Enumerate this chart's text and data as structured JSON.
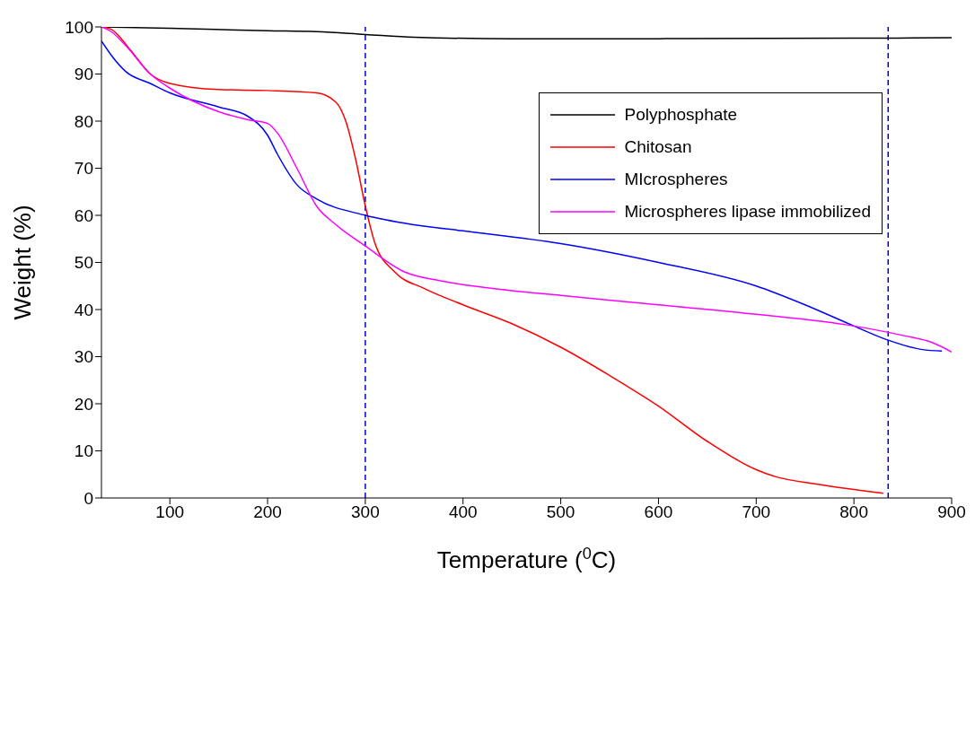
{
  "chart_data": {
    "type": "line",
    "xlabel": "Temperature ($^{0}$C)",
    "ylabel": "Weight (%)",
    "xlim": [
      30,
      900
    ],
    "xticks": [
      100,
      200,
      300,
      400,
      500,
      600,
      700,
      800,
      900
    ],
    "ylim": [
      0,
      100
    ],
    "yticks": [
      0,
      10,
      20,
      30,
      40,
      50,
      60,
      70,
      80,
      90,
      100
    ],
    "legend": "top right",
    "series": [
      {
        "name": "Polyphosphate",
        "color": "#000000",
        "x": [
          30,
          100,
          200,
          250,
          300,
          350,
          450,
          600,
          800,
          900
        ],
        "values": [
          100,
          99.7,
          99.2,
          99,
          98.4,
          97.8,
          97.5,
          97.5,
          97.6,
          97.7
        ]
      },
      {
        "name": "Chitosan",
        "color": "#ff0000",
        "x": [
          30,
          40,
          60,
          80,
          100,
          150,
          200,
          250,
          270,
          280,
          290,
          300,
          310,
          330,
          360,
          400,
          450,
          500,
          550,
          600,
          650,
          700,
          720,
          760,
          830
        ],
        "values": [
          100,
          99.5,
          95,
          90,
          88,
          86.7,
          86.5,
          86,
          84,
          80,
          72,
          62,
          54,
          48,
          44.5,
          41,
          37,
          32,
          26,
          19.5,
          12,
          6,
          4.5,
          3,
          1
        ]
      },
      {
        "name": "MIcrospheres",
        "color": "#0000ff",
        "x": [
          30,
          40,
          55,
          80,
          100,
          150,
          180,
          200,
          210,
          230,
          250,
          300,
          350,
          400,
          500,
          600,
          700,
          750,
          800,
          835,
          870,
          890
        ],
        "values": [
          97,
          94,
          90.5,
          88,
          86,
          83,
          81,
          77,
          73,
          66.5,
          63.5,
          60,
          58,
          56.7,
          54,
          50,
          45,
          41,
          36.5,
          33.5,
          31.5,
          31.2
        ]
      },
      {
        "name": "Microspheres lipase immobilized",
        "color": "#ff00ff",
        "x": [
          30,
          40,
          55,
          80,
          100,
          150,
          180,
          200,
          210,
          230,
          250,
          270,
          300,
          340,
          380,
          450,
          500,
          600,
          700,
          800,
          850,
          880,
          900
        ],
        "values": [
          100,
          99,
          96,
          90,
          87,
          82,
          80.3,
          79.5,
          77.5,
          70,
          62,
          58,
          53.5,
          48,
          46,
          44,
          43,
          41,
          39,
          36.5,
          34.5,
          33,
          31
        ]
      }
    ],
    "ref_lines": [
      {
        "axis": "x",
        "value": 300,
        "color": "#0000cc",
        "line_style": "dashed"
      },
      {
        "axis": "x",
        "value": 835,
        "color": "#0000cc",
        "line_style": "dashed"
      }
    ]
  }
}
